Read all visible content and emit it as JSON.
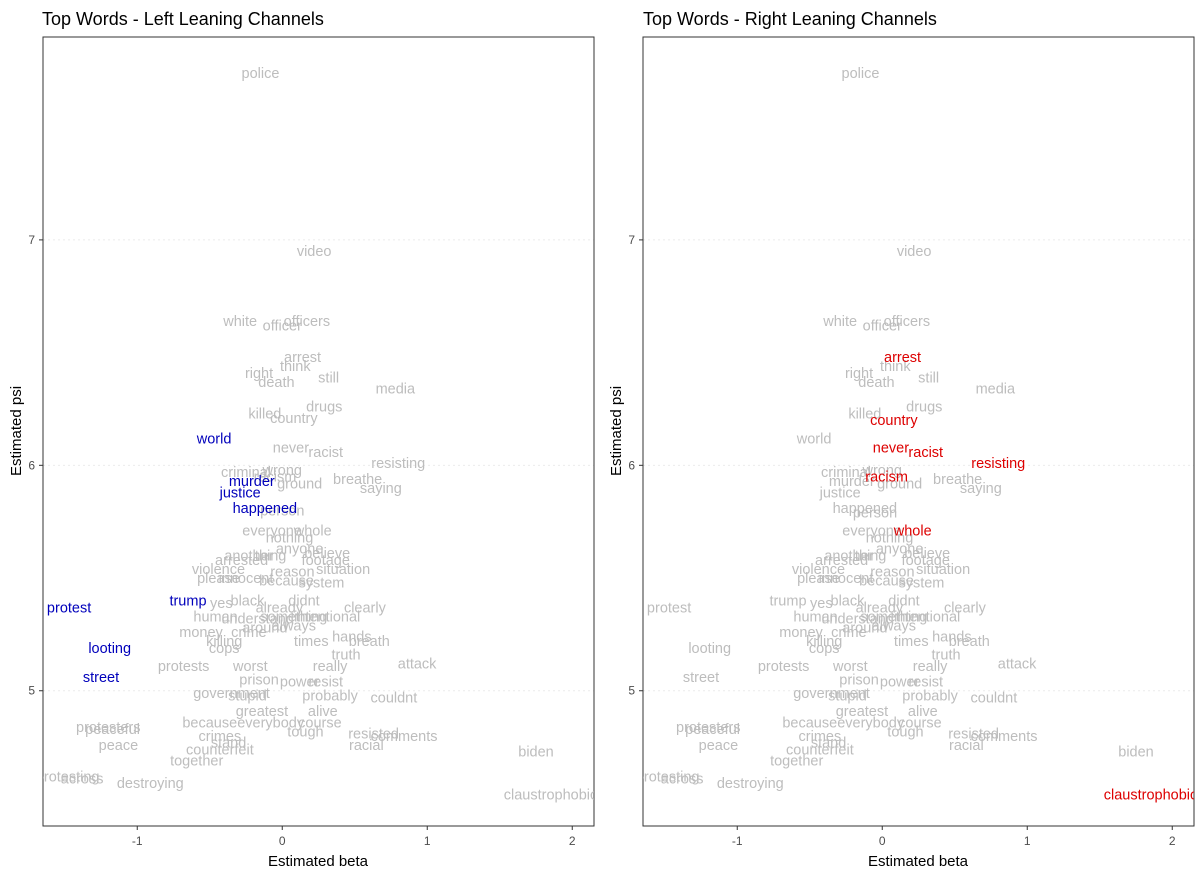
{
  "colors": {
    "background_word": "#bdbdbd",
    "left_highlight": "#0000bb",
    "right_highlight": "#dd0000"
  },
  "chart_data": [
    {
      "type": "scatter",
      "title": "Top Words - Left Leaning Channels",
      "xlabel": "Estimated beta",
      "ylabel": "Estimated psi",
      "xlim": [
        -1.65,
        2.15
      ],
      "ylim": [
        4.4,
        7.9
      ],
      "xticks": [
        -1,
        0,
        1,
        2
      ],
      "yticks": [
        5,
        6,
        7
      ],
      "grid": "horizontal dotted",
      "highlight_color": "#0000bb",
      "points": [
        {
          "label": "police",
          "x": -0.15,
          "y": 7.74
        },
        {
          "label": "video",
          "x": 0.22,
          "y": 6.95
        },
        {
          "label": "white",
          "x": -0.29,
          "y": 6.64
        },
        {
          "label": "officer",
          "x": 0.0,
          "y": 6.62
        },
        {
          "label": "officers",
          "x": 0.17,
          "y": 6.64
        },
        {
          "label": "arrest",
          "x": 0.14,
          "y": 6.48
        },
        {
          "label": "think",
          "x": 0.09,
          "y": 6.44
        },
        {
          "label": "right",
          "x": -0.16,
          "y": 6.41
        },
        {
          "label": "death",
          "x": -0.04,
          "y": 6.37
        },
        {
          "label": "still",
          "x": 0.32,
          "y": 6.39
        },
        {
          "label": "media",
          "x": 0.78,
          "y": 6.34
        },
        {
          "label": "drugs",
          "x": 0.29,
          "y": 6.26
        },
        {
          "label": "killed",
          "x": -0.12,
          "y": 6.23
        },
        {
          "label": "country",
          "x": 0.08,
          "y": 6.21
        },
        {
          "label": "world",
          "x": -0.47,
          "y": 6.12,
          "highlight": true
        },
        {
          "label": "never",
          "x": 0.06,
          "y": 6.08
        },
        {
          "label": "racist",
          "x": 0.3,
          "y": 6.06
        },
        {
          "label": "resisting",
          "x": 0.8,
          "y": 6.01
        },
        {
          "label": "criminal",
          "x": -0.25,
          "y": 5.97
        },
        {
          "label": "wrong",
          "x": 0.0,
          "y": 5.98
        },
        {
          "label": "racism",
          "x": -0.05,
          "y": 5.95
        },
        {
          "label": "murder",
          "x": -0.21,
          "y": 5.93,
          "highlight": true
        },
        {
          "label": "ground",
          "x": 0.12,
          "y": 5.92
        },
        {
          "label": "breathe",
          "x": 0.52,
          "y": 5.94
        },
        {
          "label": "saying",
          "x": 0.68,
          "y": 5.9
        },
        {
          "label": "justice",
          "x": -0.29,
          "y": 5.88,
          "highlight": true
        },
        {
          "label": "happened",
          "x": -0.12,
          "y": 5.81,
          "highlight": true
        },
        {
          "label": "person",
          "x": 0.0,
          "y": 5.8
        },
        {
          "label": "everyone",
          "x": -0.07,
          "y": 5.71
        },
        {
          "label": "whole",
          "x": 0.21,
          "y": 5.71
        },
        {
          "label": "nothing",
          "x": 0.05,
          "y": 5.68
        },
        {
          "label": "anyone",
          "x": 0.12,
          "y": 5.63
        },
        {
          "label": "believe",
          "x": 0.31,
          "y": 5.61
        },
        {
          "label": "another",
          "x": -0.23,
          "y": 5.6
        },
        {
          "label": "thing",
          "x": -0.08,
          "y": 5.6
        },
        {
          "label": "arrested",
          "x": -0.28,
          "y": 5.58
        },
        {
          "label": "footage",
          "x": 0.3,
          "y": 5.58
        },
        {
          "label": "violence",
          "x": -0.44,
          "y": 5.54
        },
        {
          "label": "reason",
          "x": 0.07,
          "y": 5.53
        },
        {
          "label": "situation",
          "x": 0.42,
          "y": 5.54
        },
        {
          "label": "please",
          "x": -0.44,
          "y": 5.5
        },
        {
          "label": "innocent",
          "x": -0.25,
          "y": 5.5
        },
        {
          "label": "because",
          "x": 0.03,
          "y": 5.49
        },
        {
          "label": "system",
          "x": 0.27,
          "y": 5.48
        },
        {
          "label": "trump",
          "x": -0.65,
          "y": 5.4,
          "highlight": true
        },
        {
          "label": "yes",
          "x": -0.42,
          "y": 5.39
        },
        {
          "label": "black",
          "x": -0.24,
          "y": 5.4
        },
        {
          "label": "didnt",
          "x": 0.15,
          "y": 5.4
        },
        {
          "label": "already",
          "x": -0.02,
          "y": 5.37
        },
        {
          "label": "clearly",
          "x": 0.57,
          "y": 5.37
        },
        {
          "label": "human",
          "x": -0.46,
          "y": 5.33
        },
        {
          "label": "understand",
          "x": -0.17,
          "y": 5.32
        },
        {
          "label": "something",
          "x": 0.08,
          "y": 5.33
        },
        {
          "label": "intentional",
          "x": 0.31,
          "y": 5.33
        },
        {
          "label": "always",
          "x": 0.08,
          "y": 5.29
        },
        {
          "label": "around",
          "x": -0.12,
          "y": 5.28
        },
        {
          "label": "money",
          "x": -0.56,
          "y": 5.26
        },
        {
          "label": "crime",
          "x": -0.23,
          "y": 5.26
        },
        {
          "label": "hands",
          "x": 0.48,
          "y": 5.24
        },
        {
          "label": "killing",
          "x": -0.4,
          "y": 5.22
        },
        {
          "label": "times",
          "x": 0.2,
          "y": 5.22
        },
        {
          "label": "breath",
          "x": 0.6,
          "y": 5.22
        },
        {
          "label": "cops",
          "x": -0.4,
          "y": 5.19
        },
        {
          "label": "truth",
          "x": 0.44,
          "y": 5.16
        },
        {
          "label": "protests",
          "x": -0.68,
          "y": 5.11
        },
        {
          "label": "worst",
          "x": -0.22,
          "y": 5.11
        },
        {
          "label": "really",
          "x": 0.33,
          "y": 5.11
        },
        {
          "label": "attack",
          "x": 0.93,
          "y": 5.12
        },
        {
          "label": "prison",
          "x": -0.16,
          "y": 5.05
        },
        {
          "label": "power",
          "x": 0.12,
          "y": 5.04
        },
        {
          "label": "resist",
          "x": 0.3,
          "y": 5.04
        },
        {
          "label": "government",
          "x": -0.35,
          "y": 4.99
        },
        {
          "label": "probably",
          "x": 0.33,
          "y": 4.98
        },
        {
          "label": "stupid",
          "x": -0.24,
          "y": 4.98
        },
        {
          "label": "couldnt",
          "x": 0.77,
          "y": 4.97
        },
        {
          "label": "greatest",
          "x": -0.14,
          "y": 4.91
        },
        {
          "label": "alive",
          "x": 0.28,
          "y": 4.91
        },
        {
          "label": "because",
          "x": -0.5,
          "y": 4.86
        },
        {
          "label": "everybody",
          "x": -0.08,
          "y": 4.86
        },
        {
          "label": "course",
          "x": 0.26,
          "y": 4.86
        },
        {
          "label": "protesters",
          "x": -1.2,
          "y": 4.84
        },
        {
          "label": "peaceful",
          "x": -1.17,
          "y": 4.83
        },
        {
          "label": "tough",
          "x": 0.16,
          "y": 4.82
        },
        {
          "label": "resisted",
          "x": 0.63,
          "y": 4.81
        },
        {
          "label": "comments",
          "x": 0.84,
          "y": 4.8
        },
        {
          "label": "crimes",
          "x": -0.43,
          "y": 4.8
        },
        {
          "label": "stand",
          "x": -0.37,
          "y": 4.77
        },
        {
          "label": "peace",
          "x": -1.13,
          "y": 4.76
        },
        {
          "label": "racial",
          "x": 0.58,
          "y": 4.76
        },
        {
          "label": "counterfeit",
          "x": -0.43,
          "y": 4.74
        },
        {
          "label": "together",
          "x": -0.59,
          "y": 4.69
        },
        {
          "label": "biden",
          "x": 1.75,
          "y": 4.73
        },
        {
          "label": "protesting",
          "x": -1.48,
          "y": 4.62
        },
        {
          "label": "across",
          "x": -1.38,
          "y": 4.61
        },
        {
          "label": "destroying",
          "x": -0.91,
          "y": 4.59
        },
        {
          "label": "claustrophobic",
          "x": 1.85,
          "y": 4.54
        },
        {
          "label": "protest",
          "x": -1.47,
          "y": 5.37,
          "highlight": true
        },
        {
          "label": "looting",
          "x": -1.19,
          "y": 5.19,
          "highlight": true
        },
        {
          "label": "street",
          "x": -1.25,
          "y": 5.06,
          "highlight": true
        }
      ]
    },
    {
      "type": "scatter",
      "title": "Top Words - Right Leaning Channels",
      "xlabel": "Estimated beta",
      "ylabel": "Estimated psi",
      "xlim": [
        -1.65,
        2.15
      ],
      "ylim": [
        4.4,
        7.9
      ],
      "xticks": [
        -1,
        0,
        1,
        2
      ],
      "yticks": [
        5,
        6,
        7
      ],
      "grid": "horizontal dotted",
      "highlight_color": "#dd0000",
      "points": [
        {
          "label": "police",
          "x": -0.15,
          "y": 7.74
        },
        {
          "label": "video",
          "x": 0.22,
          "y": 6.95
        },
        {
          "label": "white",
          "x": -0.29,
          "y": 6.64
        },
        {
          "label": "officer",
          "x": 0.0,
          "y": 6.62
        },
        {
          "label": "officers",
          "x": 0.17,
          "y": 6.64
        },
        {
          "label": "arrest",
          "x": 0.14,
          "y": 6.48,
          "highlight": true
        },
        {
          "label": "think",
          "x": 0.09,
          "y": 6.44
        },
        {
          "label": "right",
          "x": -0.16,
          "y": 6.41
        },
        {
          "label": "death",
          "x": -0.04,
          "y": 6.37
        },
        {
          "label": "still",
          "x": 0.32,
          "y": 6.39
        },
        {
          "label": "media",
          "x": 0.78,
          "y": 6.34
        },
        {
          "label": "drugs",
          "x": 0.29,
          "y": 6.26
        },
        {
          "label": "killed",
          "x": -0.12,
          "y": 6.23
        },
        {
          "label": "country",
          "x": 0.08,
          "y": 6.2,
          "highlight": true
        },
        {
          "label": "world",
          "x": -0.47,
          "y": 6.12
        },
        {
          "label": "never",
          "x": 0.06,
          "y": 6.08,
          "highlight": true
        },
        {
          "label": "racist",
          "x": 0.3,
          "y": 6.06,
          "highlight": true
        },
        {
          "label": "resisting",
          "x": 0.8,
          "y": 6.01,
          "highlight": true
        },
        {
          "label": "criminal",
          "x": -0.25,
          "y": 5.97
        },
        {
          "label": "wrong",
          "x": 0.0,
          "y": 5.98
        },
        {
          "label": "racism",
          "x": 0.03,
          "y": 5.95,
          "highlight": true
        },
        {
          "label": "murder",
          "x": -0.21,
          "y": 5.93
        },
        {
          "label": "ground",
          "x": 0.12,
          "y": 5.92
        },
        {
          "label": "breathe",
          "x": 0.52,
          "y": 5.94
        },
        {
          "label": "saying",
          "x": 0.68,
          "y": 5.9
        },
        {
          "label": "justice",
          "x": -0.29,
          "y": 5.88
        },
        {
          "label": "happened",
          "x": -0.12,
          "y": 5.81
        },
        {
          "label": "person",
          "x": -0.05,
          "y": 5.79
        },
        {
          "label": "everyone",
          "x": -0.07,
          "y": 5.71
        },
        {
          "label": "whole",
          "x": 0.21,
          "y": 5.71,
          "highlight": true
        },
        {
          "label": "nothing",
          "x": 0.05,
          "y": 5.68
        },
        {
          "label": "anyone",
          "x": 0.12,
          "y": 5.63
        },
        {
          "label": "believe",
          "x": 0.31,
          "y": 5.61
        },
        {
          "label": "another",
          "x": -0.23,
          "y": 5.6
        },
        {
          "label": "thing",
          "x": -0.08,
          "y": 5.6
        },
        {
          "label": "arrested",
          "x": -0.28,
          "y": 5.58
        },
        {
          "label": "footage",
          "x": 0.3,
          "y": 5.58
        },
        {
          "label": "violence",
          "x": -0.44,
          "y": 5.54
        },
        {
          "label": "reason",
          "x": 0.07,
          "y": 5.53
        },
        {
          "label": "situation",
          "x": 0.42,
          "y": 5.54
        },
        {
          "label": "please",
          "x": -0.44,
          "y": 5.5
        },
        {
          "label": "innocent",
          "x": -0.25,
          "y": 5.5
        },
        {
          "label": "because",
          "x": 0.03,
          "y": 5.49
        },
        {
          "label": "system",
          "x": 0.27,
          "y": 5.48
        },
        {
          "label": "trump",
          "x": -0.65,
          "y": 5.4
        },
        {
          "label": "yes",
          "x": -0.42,
          "y": 5.39
        },
        {
          "label": "black",
          "x": -0.24,
          "y": 5.4
        },
        {
          "label": "didnt",
          "x": 0.15,
          "y": 5.4
        },
        {
          "label": "already",
          "x": -0.02,
          "y": 5.37
        },
        {
          "label": "clearly",
          "x": 0.57,
          "y": 5.37
        },
        {
          "label": "human",
          "x": -0.46,
          "y": 5.33
        },
        {
          "label": "understand",
          "x": -0.17,
          "y": 5.32
        },
        {
          "label": "something",
          "x": 0.08,
          "y": 5.33
        },
        {
          "label": "intentional",
          "x": 0.31,
          "y": 5.33
        },
        {
          "label": "always",
          "x": 0.08,
          "y": 5.29
        },
        {
          "label": "around",
          "x": -0.12,
          "y": 5.28
        },
        {
          "label": "money",
          "x": -0.56,
          "y": 5.26
        },
        {
          "label": "crime",
          "x": -0.23,
          "y": 5.26
        },
        {
          "label": "hands",
          "x": 0.48,
          "y": 5.24
        },
        {
          "label": "killing",
          "x": -0.4,
          "y": 5.22
        },
        {
          "label": "times",
          "x": 0.2,
          "y": 5.22
        },
        {
          "label": "breath",
          "x": 0.6,
          "y": 5.22
        },
        {
          "label": "cops",
          "x": -0.4,
          "y": 5.19
        },
        {
          "label": "truth",
          "x": 0.44,
          "y": 5.16
        },
        {
          "label": "protests",
          "x": -0.68,
          "y": 5.11
        },
        {
          "label": "worst",
          "x": -0.22,
          "y": 5.11
        },
        {
          "label": "really",
          "x": 0.33,
          "y": 5.11
        },
        {
          "label": "attack",
          "x": 0.93,
          "y": 5.12
        },
        {
          "label": "prison",
          "x": -0.16,
          "y": 5.05
        },
        {
          "label": "power",
          "x": 0.12,
          "y": 5.04
        },
        {
          "label": "resist",
          "x": 0.3,
          "y": 5.04
        },
        {
          "label": "government",
          "x": -0.35,
          "y": 4.99
        },
        {
          "label": "probably",
          "x": 0.33,
          "y": 4.98
        },
        {
          "label": "stupid",
          "x": -0.24,
          "y": 4.98
        },
        {
          "label": "couldnt",
          "x": 0.77,
          "y": 4.97
        },
        {
          "label": "greatest",
          "x": -0.14,
          "y": 4.91
        },
        {
          "label": "alive",
          "x": 0.28,
          "y": 4.91
        },
        {
          "label": "because",
          "x": -0.5,
          "y": 4.86
        },
        {
          "label": "everybody",
          "x": -0.08,
          "y": 4.86
        },
        {
          "label": "course",
          "x": 0.26,
          "y": 4.86
        },
        {
          "label": "protesters",
          "x": -1.2,
          "y": 4.84
        },
        {
          "label": "peaceful",
          "x": -1.17,
          "y": 4.83
        },
        {
          "label": "tough",
          "x": 0.16,
          "y": 4.82
        },
        {
          "label": "resisted",
          "x": 0.63,
          "y": 4.81
        },
        {
          "label": "comments",
          "x": 0.84,
          "y": 4.8
        },
        {
          "label": "crimes",
          "x": -0.43,
          "y": 4.8
        },
        {
          "label": "stand",
          "x": -0.37,
          "y": 4.77
        },
        {
          "label": "peace",
          "x": -1.13,
          "y": 4.76
        },
        {
          "label": "racial",
          "x": 0.58,
          "y": 4.76
        },
        {
          "label": "counterfeit",
          "x": -0.43,
          "y": 4.74
        },
        {
          "label": "together",
          "x": -0.59,
          "y": 4.69
        },
        {
          "label": "biden",
          "x": 1.75,
          "y": 4.73
        },
        {
          "label": "protesting",
          "x": -1.48,
          "y": 4.62
        },
        {
          "label": "across",
          "x": -1.38,
          "y": 4.61
        },
        {
          "label": "destroying",
          "x": -0.91,
          "y": 4.59
        },
        {
          "label": "claustrophobic",
          "x": 1.85,
          "y": 4.54,
          "highlight": true
        },
        {
          "label": "protest",
          "x": -1.47,
          "y": 5.37
        },
        {
          "label": "looting",
          "x": -1.19,
          "y": 5.19
        },
        {
          "label": "street",
          "x": -1.25,
          "y": 5.06
        }
      ]
    }
  ]
}
